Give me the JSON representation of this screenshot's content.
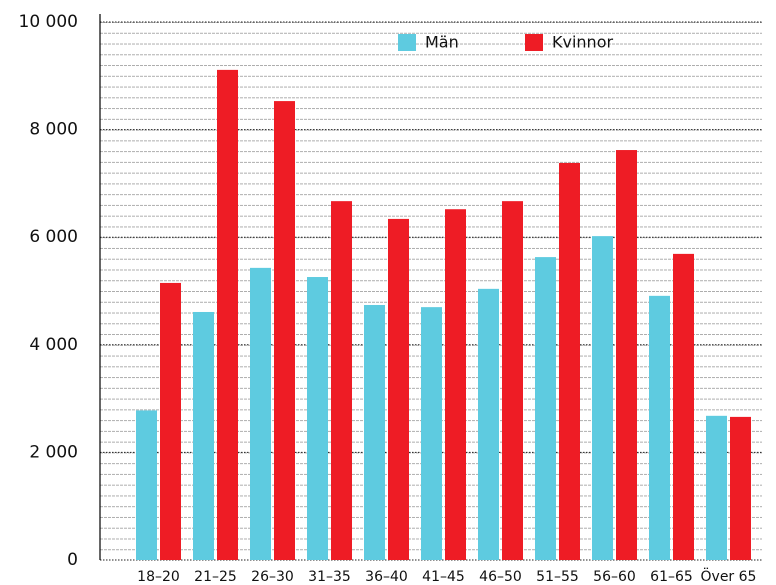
{
  "chart_data": {
    "type": "bar",
    "categories": [
      "18–20",
      "21–25",
      "26–30",
      "31–35",
      "36–40",
      "41–45",
      "46–50",
      "51–55",
      "56–60",
      "61–65",
      "Över 65"
    ],
    "series": [
      {
        "name": "Män",
        "color": "#5ecbe0",
        "values": [
          2780,
          4610,
          5430,
          5260,
          4740,
          4700,
          5040,
          5630,
          6020,
          4910,
          2680
        ]
      },
      {
        "name": "Kvinnor",
        "color": "#ee1c25",
        "values": [
          5150,
          9110,
          8530,
          6670,
          6340,
          6520,
          6670,
          7380,
          7620,
          5690,
          2660
        ]
      }
    ],
    "ylim": [
      0,
      10000
    ],
    "yticks": [
      0,
      {
        "value": 2000,
        "label": "2 000"
      },
      {
        "value": 4000,
        "label": "4 000"
      },
      {
        "value": 6000,
        "label": "6 000"
      },
      {
        "value": 8000,
        "label": "8 000"
      },
      {
        "value": 10000,
        "label": "10 000"
      }
    ],
    "grid": true
  }
}
